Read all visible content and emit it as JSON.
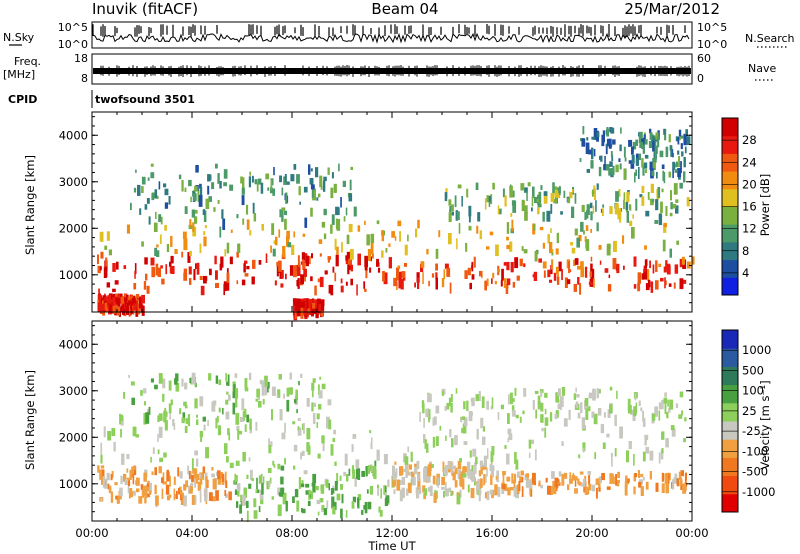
{
  "header": {
    "station": "Inuvik (fitACF)",
    "beam": "Beam 04",
    "date": "25/Mar/2012"
  },
  "panels": {
    "nsky": {
      "label": "N.Sky",
      "ticks": [
        "10^5",
        "10^0"
      ]
    },
    "nsearch": {
      "label": "N.Search",
      "ticks": [
        "10^5",
        "10^0"
      ]
    },
    "freq": {
      "label_top": "Freq.",
      "label_bottom": "[MHz]",
      "ticks": [
        "18",
        "8"
      ]
    },
    "nave": {
      "label": "Nave",
      "ticks": [
        "60",
        "0"
      ]
    },
    "cpid": {
      "label": "CPID",
      "value": "twofsound 3501"
    }
  },
  "colors": {
    "power_scale": [
      "#1020e0",
      "#1e4ea0",
      "#2e7a80",
      "#4c9a68",
      "#7ab040",
      "#e0c020",
      "#f08c10",
      "#f05a10",
      "#e81a10",
      "#d00000"
    ],
    "velocity_scale": [
      "#1a28b8",
      "#2c5aa0",
      "#2e7a5a",
      "#48a040",
      "#8ccf5a",
      "#c8c8c0",
      "#f0a040",
      "#f07820",
      "#f04a10",
      "#e00000"
    ]
  },
  "chart_data": [
    {
      "type": "heatmap",
      "name": "power",
      "ylabel": "Slant Range [km]",
      "ylim": [
        200,
        4500
      ],
      "xlim": [
        "00:00",
        "24:00"
      ],
      "x_ticks": [
        "00:00",
        "04:00",
        "08:00",
        "12:00",
        "16:00",
        "20:00",
        "00:00"
      ],
      "y_ticks": [
        1000,
        2000,
        3000,
        4000
      ],
      "colorbar": {
        "label": "Power [dB]",
        "ticks": [
          "4",
          "8",
          "12",
          "16",
          "20",
          "24",
          "28"
        ],
        "range": [
          0,
          30
        ]
      },
      "bands": [
        {
          "x": [
            0.2,
            11.8
          ],
          "y": [
            700,
            1500
          ],
          "value": 26
        },
        {
          "x": [
            11.8,
            24
          ],
          "y": [
            800,
            1400
          ],
          "value": 24
        },
        {
          "x": [
            0.3,
            23.8
          ],
          "y": [
            1500,
            2200
          ],
          "value": 16
        },
        {
          "x": [
            1.5,
            10.5
          ],
          "y": [
            2200,
            3400
          ],
          "value": 10
        },
        {
          "x": [
            14.0,
            23.8
          ],
          "y": [
            2300,
            3000
          ],
          "value": 12
        },
        {
          "x": [
            19.5,
            23.8
          ],
          "y": [
            3200,
            4200
          ],
          "value": 8
        },
        {
          "x": [
            0.2,
            2.0
          ],
          "y": [
            300,
            600
          ],
          "value": 26
        },
        {
          "x": [
            8.0,
            9.2
          ],
          "y": [
            250,
            500
          ],
          "value": 28
        }
      ]
    },
    {
      "type": "heatmap",
      "name": "velocity",
      "ylabel": "Slant Range [km]",
      "ylim": [
        200,
        4500
      ],
      "xlim": [
        "00:00",
        "24:00"
      ],
      "x_ticks": [
        "00:00",
        "04:00",
        "08:00",
        "12:00",
        "16:00",
        "20:00",
        "00:00"
      ],
      "xlabel": "Time UT",
      "y_ticks": [
        1000,
        2000,
        3000,
        4000
      ],
      "colorbar": {
        "label": "Velocity [m s⁻¹]",
        "ticks": [
          "1000",
          "500",
          "100",
          "25",
          "-25",
          "-100",
          "-500",
          "-1000"
        ],
        "range": [
          -1000,
          1000
        ]
      },
      "bands": [
        {
          "x": [
            0.2,
            5.5
          ],
          "y": [
            700,
            1400
          ],
          "value": -300
        },
        {
          "x": [
            5.5,
            12.0
          ],
          "y": [
            400,
            1500
          ],
          "value": 150
        },
        {
          "x": [
            12.0,
            16.0
          ],
          "y": [
            800,
            1500
          ],
          "value": -150
        },
        {
          "x": [
            16.0,
            23.8
          ],
          "y": [
            900,
            1300
          ],
          "value": -300
        },
        {
          "x": [
            0.3,
            23.8
          ],
          "y": [
            1500,
            2300
          ],
          "value": 0
        },
        {
          "x": [
            1.0,
            9.5
          ],
          "y": [
            2300,
            3400
          ],
          "value": 80
        },
        {
          "x": [
            13.0,
            23.8
          ],
          "y": [
            2400,
            3100
          ],
          "value": 0
        }
      ]
    }
  ]
}
